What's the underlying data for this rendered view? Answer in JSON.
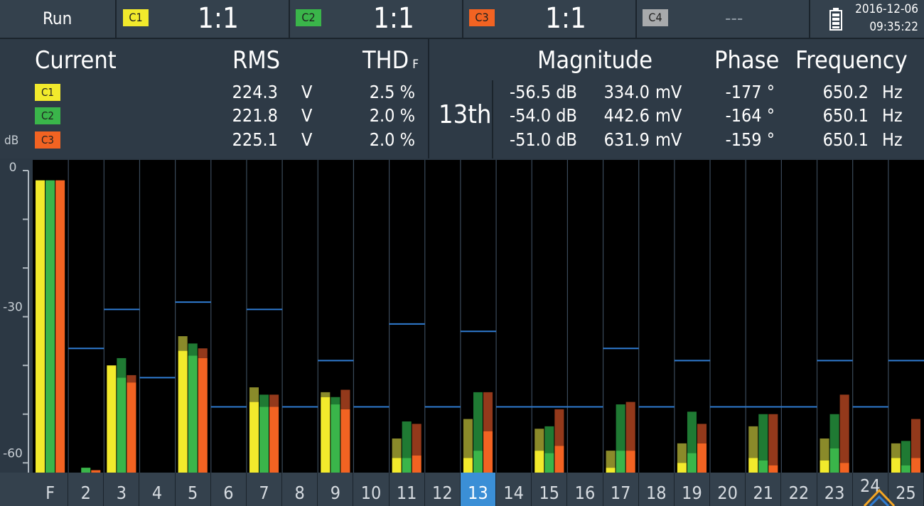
{
  "topbar": {
    "run_label": "Run",
    "channels": [
      {
        "badge": "C1",
        "ratio": "1:1",
        "color": "#f2ea2c"
      },
      {
        "badge": "C2",
        "ratio": "1:1",
        "color": "#3ab54a"
      },
      {
        "badge": "C3",
        "ratio": "1:1",
        "color": "#f26322"
      },
      {
        "badge": "C4",
        "ratio": "---",
        "color": "#a8aaac"
      }
    ],
    "date": "2016-12-06",
    "time": "09:35:22",
    "battery_icon": "battery-icon"
  },
  "measurements": {
    "current_label": "Current",
    "rms_label": "RMS",
    "thd_label": "THD",
    "thd_sub": "F",
    "harmonic_label": "13th",
    "magnitude_label": "Magnitude",
    "phase_label": "Phase",
    "frequency_label": "Frequency",
    "rows": [
      {
        "badge": "C1",
        "color": "#f2ea2c",
        "rms": "224.3",
        "rms_unit": "V",
        "thd": "2.5 %",
        "mag_db": "-56.5 dB",
        "mag_mv": "334.0",
        "mag_unit": "mV",
        "phase": "-177 °",
        "freq": "650.2",
        "freq_unit": "Hz"
      },
      {
        "badge": "C2",
        "color": "#3ab54a",
        "rms": "221.8",
        "rms_unit": "V",
        "thd": "2.0 %",
        "mag_db": "-54.0 dB",
        "mag_mv": "442.6",
        "mag_unit": "mV",
        "phase": "-164 °",
        "freq": "650.1",
        "freq_unit": "Hz"
      },
      {
        "badge": "C3",
        "color": "#f26322",
        "rms": "225.1",
        "rms_unit": "V",
        "thd": "2.0 %",
        "mag_db": "-51.0 dB",
        "mag_mv": "631.9",
        "mag_unit": "mV",
        "phase": "-159 °",
        "freq": "650.1",
        "freq_unit": "Hz"
      }
    ]
  },
  "chart_data": {
    "type": "bar",
    "ylabel": "dB",
    "yticks": [
      "0",
      "-30",
      "-60"
    ],
    "ylim": [
      -62,
      0
    ],
    "categories": [
      "F",
      "2",
      "3",
      "4",
      "5",
      "6",
      "7",
      "8",
      "9",
      "10",
      "11",
      "12",
      "13",
      "14",
      "15",
      "16",
      "17",
      "18",
      "19",
      "20",
      "21",
      "22",
      "23",
      "24",
      "25"
    ],
    "selected": "13",
    "limit_db": [
      null,
      -36.5,
      -28.5,
      -42.5,
      -27,
      -48.5,
      -28.5,
      -48.5,
      -39,
      -48.5,
      -31.5,
      -48.5,
      -33,
      -48.5,
      -48.5,
      -48.5,
      -36.5,
      -48.5,
      -39,
      -48.5,
      -48.5,
      -48.5,
      -39,
      -48.5,
      -39
    ],
    "series": [
      {
        "name": "C1",
        "color": "#f2ea2c",
        "values": [
          -2,
          null,
          -40,
          null,
          -37,
          null,
          -47.5,
          null,
          -46.5,
          null,
          -59,
          null,
          -59,
          null,
          -57.5,
          null,
          -61,
          null,
          -60,
          null,
          -59,
          null,
          -59.5,
          null,
          -59
        ],
        "peak": [
          -2,
          null,
          -40,
          null,
          -34,
          null,
          -44.5,
          null,
          -45.5,
          null,
          -55,
          null,
          -51,
          null,
          -53,
          null,
          -57.5,
          null,
          -56,
          null,
          -52.5,
          null,
          -55,
          null,
          -56
        ]
      },
      {
        "name": "C2",
        "color": "#3ab54a",
        "values": [
          -2,
          -61,
          -42.5,
          null,
          -38,
          null,
          -48.5,
          null,
          -48,
          null,
          -59,
          null,
          -57.5,
          null,
          -58,
          null,
          -57.5,
          null,
          -58,
          null,
          -59.5,
          null,
          -57,
          null,
          -60.5
        ],
        "peak": [
          -2,
          -61,
          -38.5,
          null,
          -35.5,
          null,
          -46,
          null,
          -46.5,
          null,
          -51.5,
          null,
          -45.5,
          null,
          -52.5,
          null,
          -48,
          null,
          -49.5,
          null,
          -50,
          null,
          -50,
          null,
          -55.5
        ]
      },
      {
        "name": "C3",
        "color": "#f26322",
        "values": [
          -2,
          -61.5,
          -43.5,
          null,
          -38.5,
          null,
          -48.5,
          null,
          -49,
          null,
          -58.5,
          null,
          -53.5,
          null,
          -56.5,
          null,
          -57.5,
          null,
          -56,
          null,
          -60.5,
          null,
          -60,
          null,
          -59
        ],
        "peak": [
          -2,
          -61.5,
          -42,
          null,
          -36.5,
          null,
          -46,
          null,
          -45,
          null,
          -52,
          null,
          -45.5,
          null,
          -49,
          null,
          -47.5,
          null,
          -52,
          null,
          -50,
          null,
          -46,
          null,
          -51
        ]
      }
    ]
  }
}
